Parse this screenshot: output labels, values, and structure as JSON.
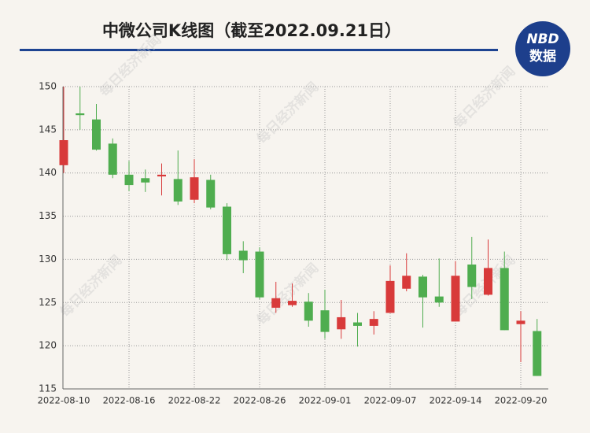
{
  "header": {
    "title": "中微公司K线图（截至2022.09.21日）",
    "logo_top": "NBD",
    "logo_bottom": "数据",
    "watermark": "每日经济新闻"
  },
  "chart_data": {
    "type": "candlestick",
    "categories": [
      "2022-08-10",
      null,
      null,
      null,
      "2022-08-16",
      null,
      null,
      null,
      "2022-08-22",
      null,
      null,
      null,
      "2022-08-26",
      null,
      null,
      null,
      "2022-09-01",
      null,
      null,
      null,
      "2022-09-07",
      null,
      null,
      null,
      "2022-09-14",
      null,
      null,
      null,
      "2022-09-20",
      null
    ],
    "open": [
      140.9,
      146.9,
      146.2,
      143.4,
      139.8,
      139.4,
      139.6,
      139.3,
      136.9,
      139.2,
      136.1,
      131.0,
      130.9,
      124.4,
      124.7,
      125.1,
      124.1,
      121.9,
      122.7,
      122.3,
      123.8,
      126.6,
      128.0,
      125.7,
      122.8,
      129.4,
      125.9,
      129.0,
      122.5,
      121.7
    ],
    "high": [
      150.0,
      150.0,
      148.0,
      144.0,
      141.4,
      140.4,
      141.1,
      142.6,
      141.6,
      139.8,
      136.5,
      132.1,
      131.4,
      127.4,
      127.2,
      126.1,
      126.5,
      125.3,
      123.8,
      124.0,
      129.3,
      130.7,
      128.2,
      130.1,
      129.8,
      132.6,
      132.3,
      130.9,
      124.0,
      123.1
    ],
    "low": [
      140.0,
      145.0,
      142.6,
      139.4,
      137.9,
      137.8,
      137.4,
      136.3,
      136.5,
      135.8,
      129.9,
      128.4,
      125.4,
      123.8,
      124.5,
      122.2,
      120.8,
      120.8,
      119.9,
      121.3,
      123.8,
      126.3,
      122.1,
      124.5,
      122.8,
      125.4,
      125.8,
      121.8,
      118.1,
      116.5
    ],
    "close": [
      143.8,
      146.7,
      142.7,
      139.8,
      138.6,
      138.9,
      139.8,
      136.7,
      139.5,
      136.0,
      130.6,
      129.9,
      125.6,
      125.5,
      125.2,
      122.9,
      121.6,
      123.3,
      122.3,
      123.1,
      127.5,
      128.1,
      125.6,
      125.0,
      128.1,
      126.8,
      129.0,
      121.8,
      122.9,
      116.5
    ],
    "up_color": "#d83a3a",
    "down_color": "#4fad4f",
    "ylim": [
      115,
      150
    ],
    "yticks": [
      115,
      120,
      125,
      130,
      135,
      140,
      145,
      150
    ],
    "grid": true
  }
}
